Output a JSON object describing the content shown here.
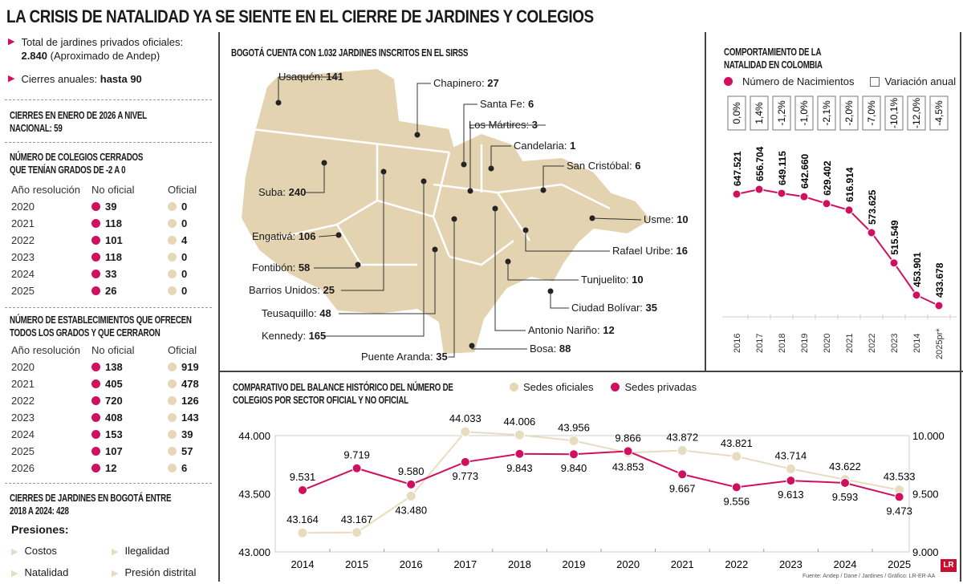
{
  "title": "LA CRISIS DE NATALIDAD YA SE SIENTE EN EL CIERRE DE JARDINES Y COLEGIOS",
  "left": {
    "bullet1_a": "Total de jardines privados oficiales:",
    "bullet1_b": "2.840",
    "bullet1_c": "(Aproximado de Andep)",
    "bullet2_a": "Cierres anuales:",
    "bullet2_b": "hasta 90",
    "enero_title": "CIERRES EN ENERO DE 2026 A NIVEL NACIONAL: 59",
    "colegios_title": "NÚMERO DE COLEGIOS CERRADOS QUE TENÍAN GRADOS DE -2 A 0",
    "col_headers": [
      "Año resolución",
      "No oficial",
      "Oficial"
    ],
    "colegios_rows": [
      [
        "2020",
        "39",
        "0"
      ],
      [
        "2021",
        "118",
        "0"
      ],
      [
        "2022",
        "101",
        "4"
      ],
      [
        "2023",
        "118",
        "0"
      ],
      [
        "2024",
        "33",
        "0"
      ],
      [
        "2025",
        "26",
        "0"
      ]
    ],
    "estab_title": "NÚMERO DE ESTABLECIMIENTOS QUE OFRECEN TODOS LOS GRADOS Y QUE CERRARON",
    "estab_rows": [
      [
        "2020",
        "138",
        "919"
      ],
      [
        "2021",
        "405",
        "478"
      ],
      [
        "2022",
        "720",
        "126"
      ],
      [
        "2023",
        "408",
        "143"
      ],
      [
        "2024",
        "153",
        "39"
      ],
      [
        "2025",
        "107",
        "57"
      ],
      [
        "2026",
        "12",
        "6"
      ]
    ],
    "jardines_title": "CIERRES DE JARDINES EN BOGOTÁ ENTRE 2018 A 2024: 428",
    "presiones_label": "Presiones:",
    "presiones": [
      "Costos",
      "Ilegalidad",
      "Natalidad",
      "Presión distrital"
    ]
  },
  "map": {
    "title": "BOGOTÁ CUENTA CON 1.032 JARDINES INSCRITOS EN EL SIRSS",
    "localidades": [
      {
        "name": "Usaquén",
        "value": "141"
      },
      {
        "name": "Chapinero",
        "value": "27"
      },
      {
        "name": "Santa Fe",
        "value": "6"
      },
      {
        "name": "Los Mártires",
        "value": "3"
      },
      {
        "name": "Candelaria",
        "value": "1"
      },
      {
        "name": "San Cristóbal",
        "value": "6"
      },
      {
        "name": "Suba",
        "value": "240"
      },
      {
        "name": "Usme",
        "value": "10"
      },
      {
        "name": "Engativá",
        "value": "106"
      },
      {
        "name": "Rafael Uribe",
        "value": "16"
      },
      {
        "name": "Fontibón",
        "value": "58"
      },
      {
        "name": "Tunjuelito",
        "value": "10"
      },
      {
        "name": "Barrios Unidos",
        "value": "25"
      },
      {
        "name": "Ciudad Bolívar",
        "value": "35"
      },
      {
        "name": "Teusaquillo",
        "value": "48"
      },
      {
        "name": "Antonio Nariño",
        "value": "12"
      },
      {
        "name": "Kennedy",
        "value": "165"
      },
      {
        "name": "Bosa",
        "value": "88"
      },
      {
        "name": "Puente Aranda",
        "value": "35"
      }
    ],
    "colors": {
      "land": "#e3d3b1",
      "border": "#ffffff"
    }
  },
  "chart_data": [
    {
      "type": "line",
      "title": "COMPORTAMIENTO DE LA NATALIDAD EN COLOMBIA",
      "legend": [
        "Número de Nacimientos",
        "Variación anual"
      ],
      "categories": [
        "2016",
        "2017",
        "2018",
        "2019",
        "2020",
        "2021",
        "2022",
        "2023",
        "2014",
        "2025pr*"
      ],
      "series": [
        {
          "name": "Número de Nacimientos",
          "values": [
            647521,
            656704,
            649115,
            642660,
            629402,
            616914,
            573625,
            515549,
            453901,
            433678
          ],
          "labels": [
            "647.521",
            "656.704",
            "649.115",
            "642.660",
            "629.402",
            "616.914",
            "573.625",
            "515.549",
            "453.901",
            "433.678"
          ],
          "color": "#d0105f"
        }
      ],
      "variacion_anual": [
        "0,0%",
        "1,4%",
        "-1,2%",
        "-1,0%",
        "-2,1%",
        "-2,0%",
        "-7,0%",
        "-10,1%",
        "-12,0%",
        "-4,5%"
      ]
    },
    {
      "type": "line",
      "title": "COMPARATIVO DEL BALANCE HISTÓRICO DEL NÚMERO DE COLEGIOS POR SECTOR OFICIAL Y NO OFICIAL",
      "categories": [
        "2014",
        "2015",
        "2016",
        "2017",
        "2018",
        "2019",
        "2020",
        "2021",
        "2022",
        "2023",
        "2024",
        "2025"
      ],
      "left_axis": {
        "range": [
          43000,
          44000
        ],
        "ticks": [
          "43.000",
          "43.500",
          "44.000"
        ]
      },
      "right_axis": {
        "range": [
          9000,
          10000
        ],
        "ticks": [
          "9.000",
          "9.500",
          "10.000"
        ]
      },
      "series": [
        {
          "name": "Sedes oficiales",
          "axis": "left",
          "color": "#e8dcc0",
          "values": [
            43164,
            43167,
            43480,
            44033,
            44006,
            43956,
            43853,
            43872,
            43821,
            43714,
            43622,
            43533
          ],
          "labels": [
            "43.164",
            "43.167",
            "43.480",
            "44.033",
            "44.006",
            "43.956",
            "43.853",
            "43.872",
            "43.821",
            "43.714",
            "43.622",
            "43.533"
          ]
        },
        {
          "name": "Sedes privadas",
          "axis": "right",
          "color": "#d0105f",
          "values": [
            9531,
            9719,
            9580,
            9773,
            9843,
            9840,
            9866,
            9667,
            9556,
            9613,
            9593,
            9473
          ],
          "labels": [
            "9.531",
            "9.719",
            "9.580",
            "9.773",
            "9.843",
            "9.840",
            "9.866",
            "9.667",
            "9.556",
            "9.613",
            "9.593",
            "9.473"
          ]
        }
      ]
    }
  ],
  "footer": {
    "source": "Fuente: Andep / Dane / Jardines / Gráfico: LR-ER-AA",
    "logo": "LR"
  }
}
